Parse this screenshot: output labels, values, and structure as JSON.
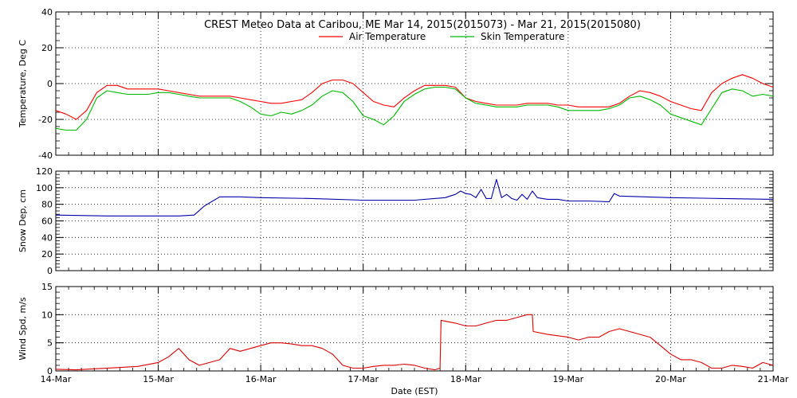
{
  "chart_data": {
    "type": "line",
    "title": "CREST Meteo Data at Caribou, ME   Mar 14, 2015(2015073) - Mar 21, 2015(2015080)",
    "xlabel": "Date (EST)",
    "x_ticks": [
      "14-Mar",
      "15-Mar",
      "16-Mar",
      "17-Mar",
      "18-Mar",
      "19-Mar",
      "20-Mar",
      "21-Mar"
    ],
    "x_range_days": [
      0,
      7
    ],
    "grid": true,
    "legend_position": "top-center",
    "panels": [
      {
        "id": "temperature",
        "ylabel": "Temperature, Deg C",
        "ylim": [
          -40,
          40
        ],
        "y_ticks": [
          "-40",
          "-20",
          "0",
          "20",
          "40"
        ],
        "y_tick_values": [
          -40,
          -20,
          0,
          20,
          40
        ],
        "legend": true,
        "series": [
          {
            "name": "Air Temperature",
            "color": "#ff0000",
            "x": [
              0,
              0.1,
              0.2,
              0.3,
              0.4,
              0.5,
              0.6,
              0.7,
              0.8,
              0.9,
              1.0,
              1.1,
              1.2,
              1.3,
              1.4,
              1.5,
              1.6,
              1.7,
              1.8,
              1.9,
              2.0,
              2.1,
              2.2,
              2.3,
              2.4,
              2.5,
              2.6,
              2.7,
              2.8,
              2.9,
              3.0,
              3.1,
              3.2,
              3.3,
              3.4,
              3.5,
              3.6,
              3.7,
              3.8,
              3.9,
              4.0,
              4.1,
              4.2,
              4.3,
              4.4,
              4.5,
              4.6,
              4.7,
              4.8,
              4.9,
              5.0,
              5.1,
              5.2,
              5.3,
              5.4,
              5.5,
              5.6,
              5.7,
              5.8,
              5.9,
              6.0,
              6.1,
              6.2,
              6.3,
              6.4,
              6.5,
              6.6,
              6.7,
              6.8,
              6.9,
              7.0
            ],
            "values": [
              -15,
              -17,
              -20,
              -15,
              -5,
              -1,
              -1,
              -3,
              -3,
              -3,
              -3,
              -4,
              -5,
              -6,
              -7,
              -7,
              -7,
              -7,
              -8,
              -9,
              -10,
              -11,
              -11,
              -10,
              -9,
              -5,
              0,
              2,
              2,
              0,
              -5,
              -10,
              -12,
              -13,
              -8,
              -4,
              -1,
              -1,
              -1,
              -2,
              -8,
              -10,
              -11,
              -12,
              -12,
              -12,
              -11,
              -11,
              -11,
              -12,
              -12,
              -13,
              -13,
              -13,
              -13,
              -11,
              -7,
              -4,
              -5,
              -7,
              -10,
              -12,
              -14,
              -15,
              -5,
              0,
              3,
              5,
              3,
              0,
              -2
            ]
          },
          {
            "name": "Skin Temperature",
            "color": "#00bb00",
            "x": [
              0,
              0.1,
              0.2,
              0.3,
              0.4,
              0.5,
              0.6,
              0.7,
              0.8,
              0.9,
              1.0,
              1.1,
              1.2,
              1.3,
              1.4,
              1.5,
              1.6,
              1.7,
              1.8,
              1.9,
              2.0,
              2.1,
              2.2,
              2.3,
              2.4,
              2.5,
              2.6,
              2.7,
              2.8,
              2.9,
              3.0,
              3.1,
              3.2,
              3.3,
              3.4,
              3.5,
              3.6,
              3.7,
              3.8,
              3.9,
              4.0,
              4.1,
              4.2,
              4.3,
              4.4,
              4.5,
              4.6,
              4.7,
              4.8,
              4.9,
              5.0,
              5.1,
              5.2,
              5.3,
              5.4,
              5.5,
              5.6,
              5.7,
              5.8,
              5.9,
              6.0,
              6.1,
              6.2,
              6.3,
              6.4,
              6.5,
              6.6,
              6.7,
              6.8,
              6.9,
              7.0
            ],
            "values": [
              -25,
              -26,
              -26,
              -20,
              -8,
              -4,
              -5,
              -6,
              -6,
              -6,
              -5,
              -5,
              -6,
              -7,
              -8,
              -8,
              -8,
              -8,
              -10,
              -13,
              -17,
              -18,
              -16,
              -17,
              -15,
              -12,
              -7,
              -4,
              -5,
              -10,
              -18,
              -20,
              -23,
              -18,
              -10,
              -6,
              -3,
              -2,
              -2,
              -3,
              -8,
              -11,
              -12,
              -13,
              -13,
              -13,
              -12,
              -12,
              -12,
              -13,
              -15,
              -15,
              -15,
              -15,
              -14,
              -12,
              -8,
              -7,
              -9,
              -12,
              -17,
              -19,
              -21,
              -23,
              -14,
              -5,
              -3,
              -4,
              -7,
              -6,
              -7
            ]
          }
        ]
      },
      {
        "id": "snow_depth",
        "ylabel": "Snow Dep, cm",
        "ylim": [
          0,
          120
        ],
        "y_ticks": [
          "0",
          "20",
          "40",
          "60",
          "80",
          "100",
          "120"
        ],
        "y_tick_values": [
          0,
          20,
          40,
          60,
          80,
          100,
          120
        ],
        "legend": false,
        "series": [
          {
            "name": "",
            "color": "#0000aa",
            "x": [
              0,
              0.5,
              1.0,
              1.2,
              1.35,
              1.45,
              1.6,
              1.8,
              2.0,
              2.5,
              3.0,
              3.5,
              3.8,
              3.9,
              3.95,
              4.0,
              4.05,
              4.1,
              4.15,
              4.2,
              4.25,
              4.3,
              4.35,
              4.4,
              4.45,
              4.5,
              4.55,
              4.6,
              4.65,
              4.7,
              4.75,
              4.8,
              4.9,
              5.0,
              5.2,
              5.4,
              5.45,
              5.5,
              6.0,
              6.5,
              7.0
            ],
            "values": [
              67,
              66,
              66,
              66,
              67,
              78,
              89,
              89,
              88,
              87,
              85,
              85,
              88,
              92,
              96,
              93,
              92,
              88,
              98,
              87,
              87,
              110,
              88,
              92,
              87,
              85,
              92,
              86,
              96,
              88,
              87,
              86,
              86,
              84,
              84,
              83,
              93,
              90,
              88,
              87,
              86
            ]
          }
        ]
      },
      {
        "id": "wind_speed",
        "ylabel": "Wind Spd, m/s",
        "ylim": [
          0,
          15
        ],
        "y_ticks": [
          "0",
          "5",
          "10",
          "15"
        ],
        "y_tick_values": [
          0,
          5,
          10,
          15
        ],
        "legend": false,
        "series": [
          {
            "name": "",
            "color": "#dd0000",
            "x": [
              0,
              0.2,
              0.4,
              0.6,
              0.8,
              1.0,
              1.1,
              1.2,
              1.3,
              1.4,
              1.5,
              1.6,
              1.7,
              1.8,
              1.9,
              2.0,
              2.1,
              2.2,
              2.3,
              2.4,
              2.5,
              2.6,
              2.7,
              2.8,
              2.9,
              3.0,
              3.1,
              3.2,
              3.3,
              3.4,
              3.5,
              3.6,
              3.7,
              3.75,
              3.76,
              3.9,
              4.0,
              4.1,
              4.2,
              4.3,
              4.4,
              4.5,
              4.6,
              4.65,
              4.66,
              4.8,
              5.0,
              5.1,
              5.2,
              5.3,
              5.4,
              5.5,
              5.6,
              5.7,
              5.8,
              5.9,
              6.0,
              6.1,
              6.2,
              6.3,
              6.4,
              6.5,
              6.6,
              6.7,
              6.8,
              6.9,
              7.0
            ],
            "values": [
              0.3,
              0.2,
              0.4,
              0.6,
              0.8,
              1.5,
              2.5,
              4,
              2,
              1,
              1.5,
              2,
              4,
              3.5,
              4,
              4.5,
              5,
              5,
              4.8,
              4.5,
              4.5,
              4,
              3,
              1,
              0.5,
              0.5,
              0.8,
              1,
              1,
              1.2,
              1,
              0.5,
              0.2,
              0.5,
              9,
              8.5,
              8,
              8,
              8.5,
              9,
              9,
              9.5,
              10,
              10,
              7,
              6.5,
              6,
              5.5,
              6,
              6,
              7,
              7.5,
              7,
              6.5,
              6,
              4.5,
              3,
              2,
              2,
              1.5,
              0.5,
              0.5,
              1,
              0.8,
              0.5,
              1.5,
              1
            ]
          }
        ]
      }
    ]
  }
}
